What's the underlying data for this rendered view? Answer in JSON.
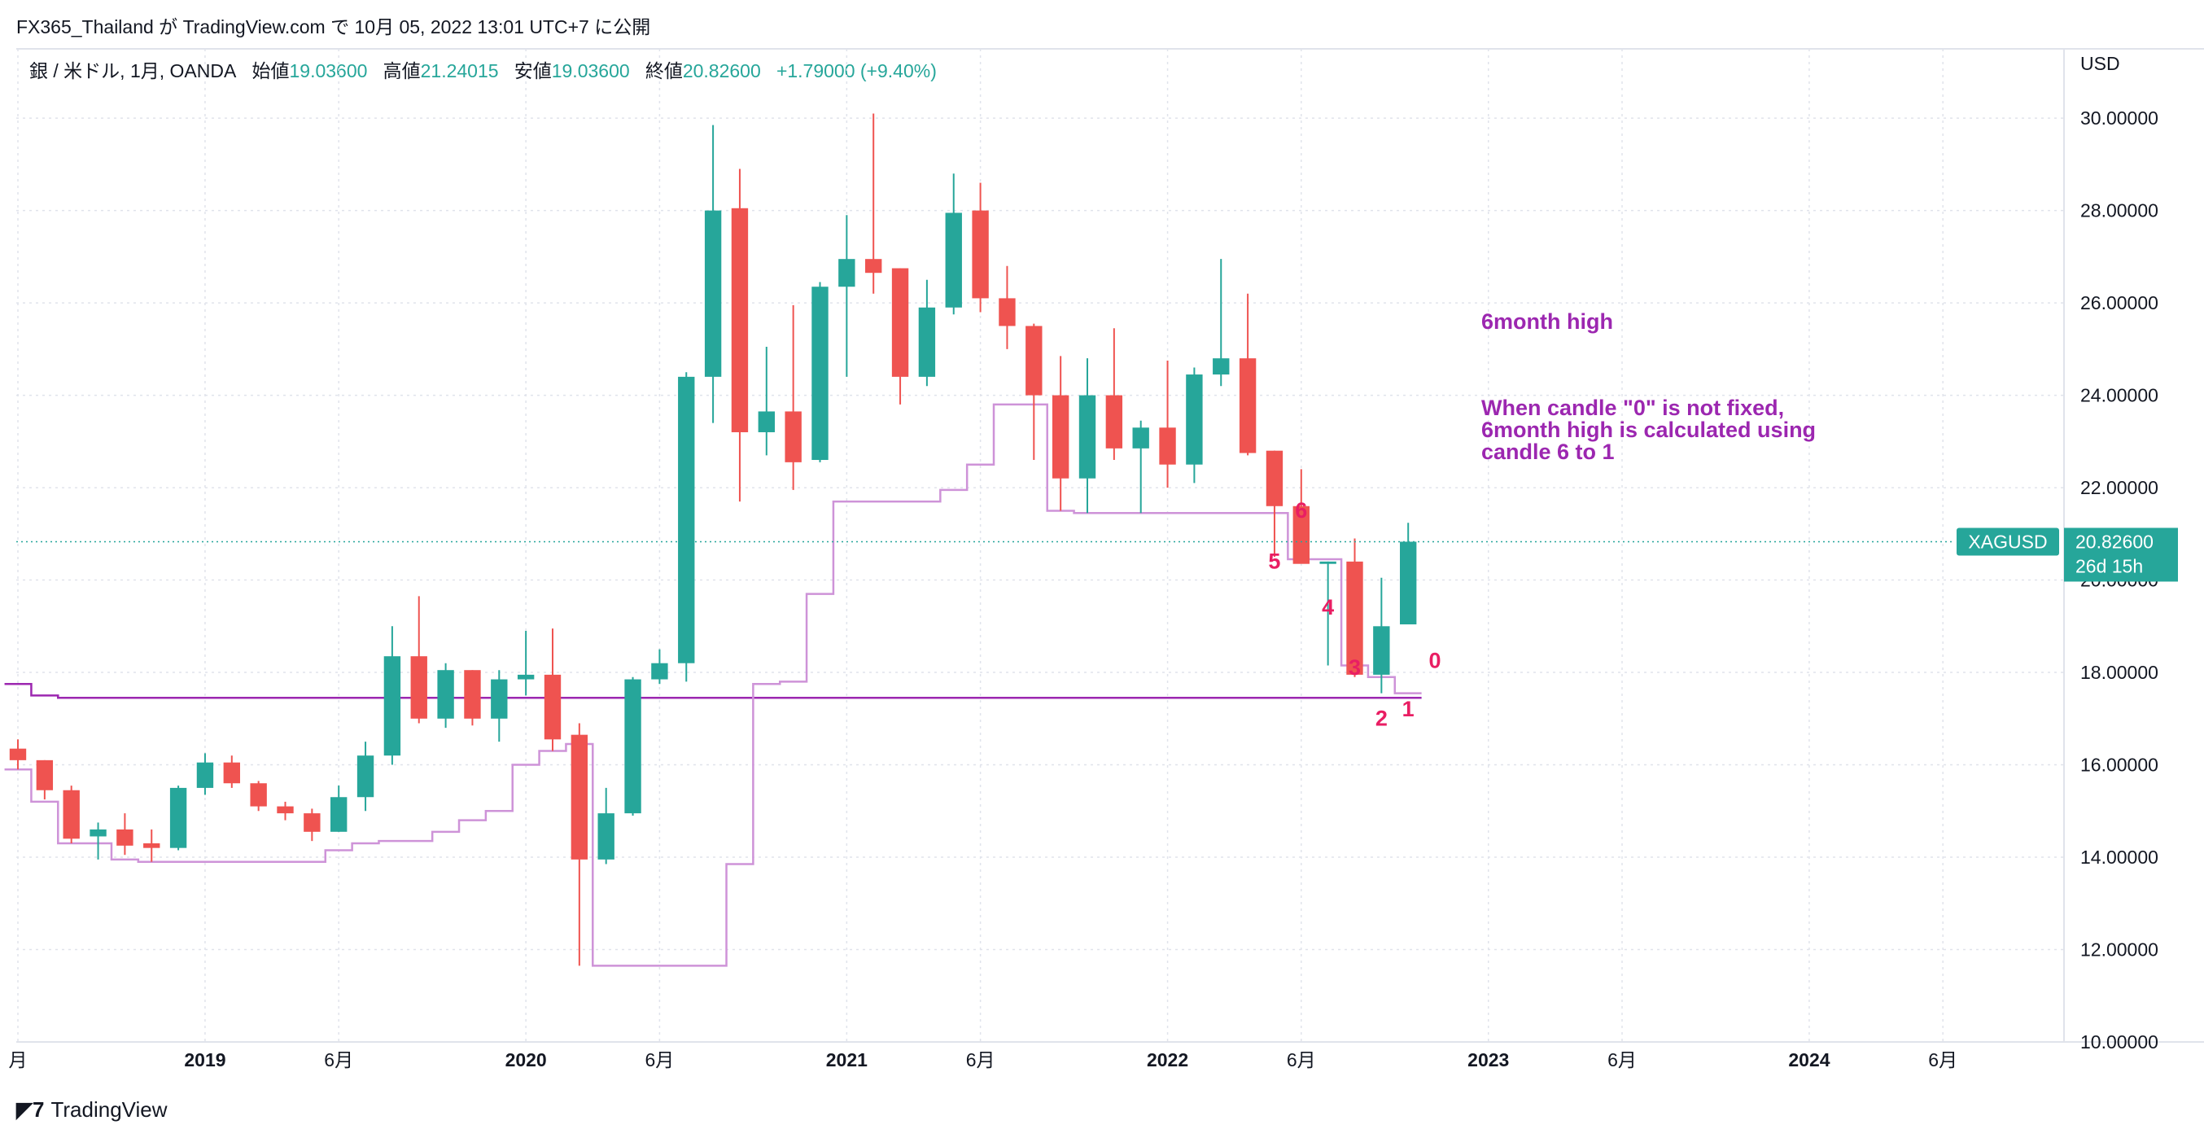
{
  "header": {
    "title": "FX365_Thailand が TradingView.com で 10月 05, 2022 13:01 UTC+7 に公開"
  },
  "legend": {
    "symbol": "銀 / 米ドル, 1月, OANDA",
    "open_label": "始値",
    "open": "19.03600",
    "high_label": "高値",
    "high": "21.24015",
    "low_label": "安値",
    "low": "19.03600",
    "close_label": "終値",
    "close": "20.82600",
    "change": "+1.79000 (+9.40%)"
  },
  "price_scale": {
    "currency": "USD",
    "symbol_tag": "XAGUSD",
    "last_price": "20.82600",
    "countdown": "26d 15h"
  },
  "brand": "TradingView",
  "colors": {
    "up": "#26a69a",
    "down": "#ef5350",
    "channel_high": "#9c27b0",
    "channel_low": "#ce93d8",
    "annotation": "#9c27b0",
    "label": "#e91e63",
    "grid": "#e0e3eb"
  },
  "chart_data": {
    "type": "candlestick",
    "interval": "1M",
    "ylim": [
      10,
      31.5
    ],
    "yticks": [
      "10.00000",
      "12.00000",
      "14.00000",
      "16.00000",
      "18.00000",
      "20.00000",
      "22.00000",
      "24.00000",
      "26.00000",
      "28.00000",
      "30.00000"
    ],
    "xticks": [
      {
        "label": "月",
        "i": 0
      },
      {
        "label": "2019",
        "i": 7
      },
      {
        "label": "6月",
        "i": 12
      },
      {
        "label": "2020",
        "i": 19
      },
      {
        "label": "6月",
        "i": 24
      },
      {
        "label": "2021",
        "i": 31
      },
      {
        "label": "6月",
        "i": 36
      },
      {
        "label": "2022",
        "i": 43
      },
      {
        "label": "6月",
        "i": 48
      },
      {
        "label": "2023",
        "i": 55
      },
      {
        "label": "6月",
        "i": 60
      },
      {
        "label": "2024",
        "i": 67
      },
      {
        "label": "6月",
        "i": 72
      }
    ],
    "candles": [
      {
        "t": "2018-06",
        "o": 16.35,
        "h": 16.55,
        "l": 15.9,
        "c": 16.1
      },
      {
        "t": "2018-07",
        "o": 16.1,
        "h": 16.1,
        "l": 15.25,
        "c": 15.45
      },
      {
        "t": "2018-08",
        "o": 15.45,
        "h": 15.55,
        "l": 14.3,
        "c": 14.4
      },
      {
        "t": "2018-09",
        "o": 14.45,
        "h": 14.75,
        "l": 13.95,
        "c": 14.6
      },
      {
        "t": "2018-10",
        "o": 14.6,
        "h": 14.95,
        "l": 14.05,
        "c": 14.25
      },
      {
        "t": "2018-11",
        "o": 14.3,
        "h": 14.6,
        "l": 13.9,
        "c": 14.2
      },
      {
        "t": "2018-12",
        "o": 14.2,
        "h": 15.55,
        "l": 14.15,
        "c": 15.5
      },
      {
        "t": "2019-01",
        "o": 15.5,
        "h": 16.25,
        "l": 15.35,
        "c": 16.05
      },
      {
        "t": "2019-02",
        "o": 16.05,
        "h": 16.2,
        "l": 15.5,
        "c": 15.6
      },
      {
        "t": "2019-03",
        "o": 15.6,
        "h": 15.65,
        "l": 15.0,
        "c": 15.1
      },
      {
        "t": "2019-04",
        "o": 15.1,
        "h": 15.2,
        "l": 14.8,
        "c": 14.95
      },
      {
        "t": "2019-05",
        "o": 14.95,
        "h": 15.05,
        "l": 14.35,
        "c": 14.55
      },
      {
        "t": "2019-06",
        "o": 14.55,
        "h": 15.55,
        "l": 14.55,
        "c": 15.3
      },
      {
        "t": "2019-07",
        "o": 15.3,
        "h": 16.5,
        "l": 15.0,
        "c": 16.2
      },
      {
        "t": "2019-08",
        "o": 16.2,
        "h": 19.0,
        "l": 16.0,
        "c": 18.35
      },
      {
        "t": "2019-09",
        "o": 18.35,
        "h": 19.65,
        "l": 16.9,
        "c": 17.0
      },
      {
        "t": "2019-10",
        "o": 17.0,
        "h": 18.2,
        "l": 16.8,
        "c": 18.05
      },
      {
        "t": "2019-11",
        "o": 18.05,
        "h": 18.05,
        "l": 16.85,
        "c": 17.0
      },
      {
        "t": "2019-12",
        "o": 17.0,
        "h": 18.05,
        "l": 16.5,
        "c": 17.85
      },
      {
        "t": "2020-01",
        "o": 17.85,
        "h": 18.9,
        "l": 17.5,
        "c": 17.95
      },
      {
        "t": "2020-02",
        "o": 17.95,
        "h": 18.95,
        "l": 16.3,
        "c": 16.55
      },
      {
        "t": "2020-03",
        "o": 16.65,
        "h": 16.9,
        "l": 11.65,
        "c": 13.95
      },
      {
        "t": "2020-04",
        "o": 13.95,
        "h": 15.5,
        "l": 13.85,
        "c": 14.95
      },
      {
        "t": "2020-05",
        "o": 14.95,
        "h": 17.9,
        "l": 14.9,
        "c": 17.85
      },
      {
        "t": "2020-06",
        "o": 17.85,
        "h": 18.5,
        "l": 17.75,
        "c": 18.2
      },
      {
        "t": "2020-07",
        "o": 18.2,
        "h": 24.5,
        "l": 17.8,
        "c": 24.4
      },
      {
        "t": "2020-08",
        "o": 24.4,
        "h": 29.85,
        "l": 23.4,
        "c": 28.0
      },
      {
        "t": "2020-09",
        "o": 28.05,
        "h": 28.9,
        "l": 21.7,
        "c": 23.2
      },
      {
        "t": "2020-10",
        "o": 23.2,
        "h": 25.05,
        "l": 22.7,
        "c": 23.65
      },
      {
        "t": "2020-11",
        "o": 23.65,
        "h": 25.95,
        "l": 21.95,
        "c": 22.55
      },
      {
        "t": "2020-12",
        "o": 22.6,
        "h": 26.45,
        "l": 22.55,
        "c": 26.35
      },
      {
        "t": "2021-01",
        "o": 26.35,
        "h": 27.9,
        "l": 24.4,
        "c": 26.95
      },
      {
        "t": "2021-02",
        "o": 26.95,
        "h": 30.1,
        "l": 26.2,
        "c": 26.65
      },
      {
        "t": "2021-03",
        "o": 26.75,
        "h": 26.75,
        "l": 23.8,
        "c": 24.4
      },
      {
        "t": "2021-04",
        "o": 24.4,
        "h": 26.5,
        "l": 24.2,
        "c": 25.9
      },
      {
        "t": "2021-05",
        "o": 25.9,
        "h": 28.8,
        "l": 25.75,
        "c": 27.95
      },
      {
        "t": "2021-06",
        "o": 28.0,
        "h": 28.6,
        "l": 25.8,
        "c": 26.1
      },
      {
        "t": "2021-07",
        "o": 26.1,
        "h": 26.8,
        "l": 25.0,
        "c": 25.5
      },
      {
        "t": "2021-08",
        "o": 25.5,
        "h": 25.55,
        "l": 22.6,
        "c": 24.0
      },
      {
        "t": "2021-09",
        "o": 24.0,
        "h": 24.85,
        "l": 21.5,
        "c": 22.2
      },
      {
        "t": "2021-10",
        "o": 22.2,
        "h": 24.8,
        "l": 21.45,
        "c": 24.0
      },
      {
        "t": "2021-11",
        "o": 24.0,
        "h": 25.45,
        "l": 22.6,
        "c": 22.85
      },
      {
        "t": "2021-12",
        "o": 22.85,
        "h": 23.45,
        "l": 21.45,
        "c": 23.3
      },
      {
        "t": "2022-01",
        "o": 23.3,
        "h": 24.75,
        "l": 22.0,
        "c": 22.5
      },
      {
        "t": "2022-02",
        "o": 22.5,
        "h": 24.6,
        "l": 22.1,
        "c": 24.45
      },
      {
        "t": "2022-03",
        "o": 24.45,
        "h": 26.95,
        "l": 24.2,
        "c": 24.8
      },
      {
        "t": "2022-04",
        "o": 24.8,
        "h": 26.2,
        "l": 22.7,
        "c": 22.75
      },
      {
        "t": "2022-05",
        "o": 22.8,
        "h": 22.8,
        "l": 20.5,
        "c": 21.6
      },
      {
        "t": "2022-06",
        "o": 21.6,
        "h": 22.4,
        "l": 20.45,
        "c": 20.35
      },
      {
        "t": "2022-07",
        "o": 20.35,
        "h": 20.4,
        "l": 18.15,
        "c": 20.4
      },
      {
        "t": "2022-08",
        "o": 20.4,
        "h": 20.9,
        "l": 17.9,
        "c": 17.95
      },
      {
        "t": "2022-09",
        "o": 17.95,
        "h": 20.05,
        "l": 17.55,
        "c": 19.0
      },
      {
        "t": "2022-10",
        "o": 19.04,
        "h": 21.24,
        "l": 19.04,
        "c": 20.83
      }
    ],
    "high_channel": [
      17.75,
      17.5,
      17.45,
      17.45,
      17.45,
      17.45,
      17.45,
      17.45,
      17.45,
      17.45,
      17.45,
      17.45,
      17.45,
      17.45,
      17.45,
      17.45,
      17.45,
      17.45,
      17.45,
      17.45,
      17.45,
      17.45,
      17.45,
      17.45,
      17.45,
      17.45,
      17.45,
      17.45,
      17.45,
      17.45,
      17.45,
      17.45,
      17.45,
      17.45,
      17.45,
      17.45,
      17.45,
      17.45,
      17.45,
      17.45,
      17.45,
      17.45,
      17.45,
      17.45,
      17.45,
      17.45,
      17.45,
      17.45,
      17.45,
      17.45,
      17.45,
      17.45,
      17.45
    ],
    "low_channel": [
      15.9,
      15.2,
      14.3,
      14.3,
      13.95,
      13.9,
      13.9,
      13.9,
      13.9,
      13.9,
      13.9,
      13.9,
      14.15,
      14.3,
      14.35,
      14.35,
      14.55,
      14.8,
      15.0,
      16.0,
      16.3,
      16.45,
      11.65,
      11.65,
      11.65,
      11.65,
      11.65,
      13.85,
      17.75,
      17.8,
      19.7,
      21.7,
      21.7,
      21.7,
      21.7,
      21.95,
      22.5,
      23.8,
      23.8,
      21.5,
      21.45,
      21.45,
      21.45,
      21.45,
      21.45,
      21.45,
      21.45,
      21.45,
      20.45,
      20.45,
      18.15,
      17.9,
      17.55
    ],
    "annotations": {
      "title": "6month high",
      "note": [
        "When candle \"0\" is not fixed,",
        "6month high is calculated using",
        "candle 6 to 1"
      ],
      "candle_labels": [
        {
          "text": "6",
          "i": 48,
          "y": 21.35
        },
        {
          "text": "5",
          "i": 47,
          "y": 20.25
        },
        {
          "text": "4",
          "i": 49,
          "y": 19.25
        },
        {
          "text": "3",
          "i": 50,
          "y": 17.95
        },
        {
          "text": "2",
          "i": 51,
          "y": 16.85
        },
        {
          "text": "1",
          "i": 52,
          "y": 17.05
        },
        {
          "text": "0",
          "i": 53,
          "y": 18.1
        }
      ]
    }
  }
}
